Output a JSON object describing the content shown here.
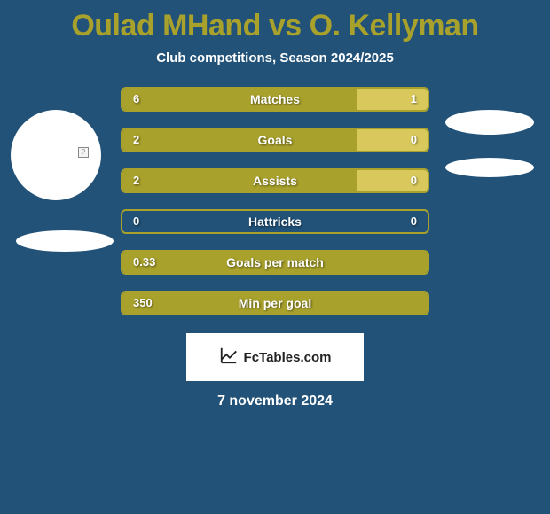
{
  "background_color": "#225278",
  "text_color": "#ffffff",
  "title_color": "#a8a12c",
  "title": "Oulad MHand vs O. Kellyman",
  "subtitle": "Club competitions, Season 2024/2025",
  "left_color": "#a8a12c",
  "right_color": "#d9c95d",
  "border_color": "#a8a12c",
  "player_left": {
    "photo_bg": "#ffffff"
  },
  "player_right": {
    "photo_bg": "#ffffff"
  },
  "bars": [
    {
      "label": "Matches",
      "left": "6",
      "right": "1",
      "left_frac": 0.77
    },
    {
      "label": "Goals",
      "left": "2",
      "right": "0",
      "left_frac": 0.77
    },
    {
      "label": "Assists",
      "left": "2",
      "right": "0",
      "left_frac": 0.77
    },
    {
      "label": "Hattricks",
      "left": "0",
      "right": "0",
      "left_frac": 1.0,
      "empty": true
    },
    {
      "label": "Goals per match",
      "left": "0.33",
      "right": "",
      "left_frac": 1.0
    },
    {
      "label": "Min per goal",
      "left": "350",
      "right": "",
      "left_frac": 1.0
    }
  ],
  "footer_brand": "FcTables.com",
  "date": "7 november 2024"
}
